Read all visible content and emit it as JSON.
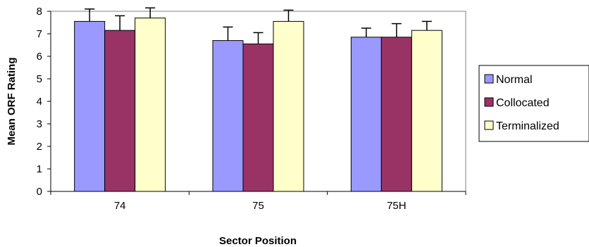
{
  "chart_data": {
    "type": "bar",
    "categories": [
      "74",
      "75",
      "75H"
    ],
    "series": [
      {
        "name": "Normal",
        "values": [
          7.55,
          6.7,
          6.85
        ],
        "errors": [
          0.55,
          0.6,
          0.4
        ],
        "color": "#9999ff"
      },
      {
        "name": "Collocated",
        "values": [
          7.15,
          6.55,
          6.85
        ],
        "errors": [
          0.65,
          0.5,
          0.6
        ],
        "color": "#993366"
      },
      {
        "name": "Terminalized",
        "values": [
          7.7,
          7.55,
          7.15
        ],
        "errors": [
          0.45,
          0.5,
          0.4
        ],
        "color": "#ffffcc"
      }
    ],
    "title": "",
    "xlabel": "Sector Position",
    "ylabel": "Mean ORF Rating",
    "ylim": [
      0,
      8
    ],
    "yticks": [
      "0",
      "1",
      "2",
      "3",
      "4",
      "5",
      "6",
      "7",
      "8"
    ],
    "grid": false,
    "legend_position": "right",
    "plot_background": "#ffffff"
  }
}
